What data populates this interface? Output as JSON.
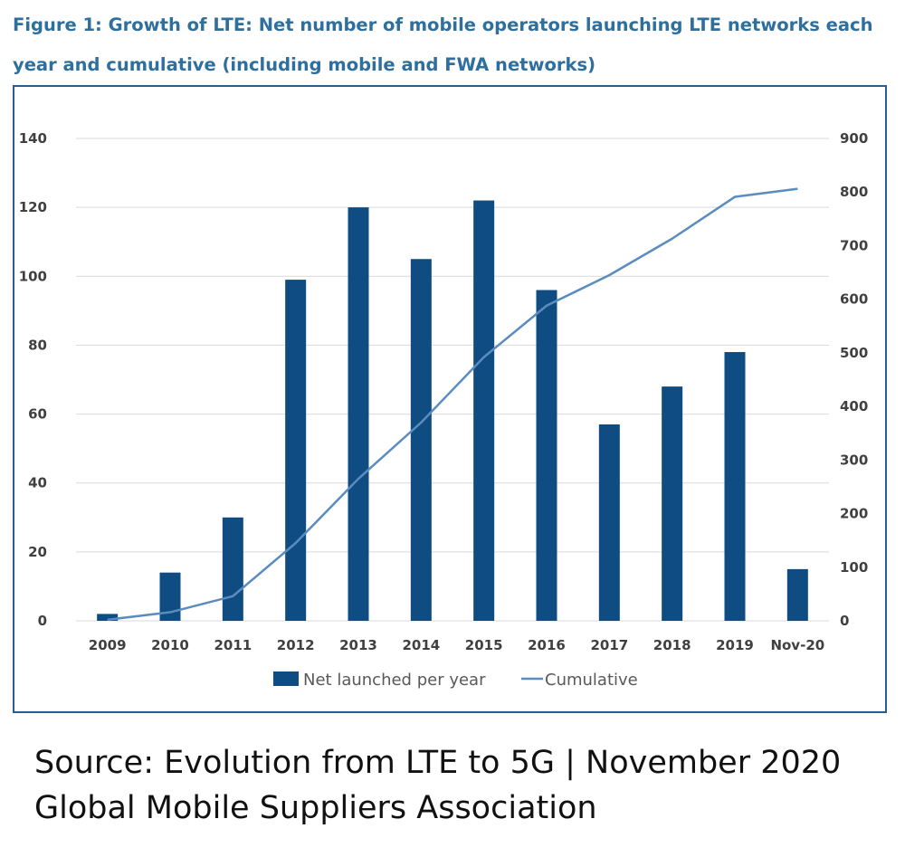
{
  "figure": {
    "title": "Figure 1: Growth of LTE: Net number of mobile operators launching LTE networks each year and cumulative (including mobile and FWA networks)"
  },
  "source": {
    "line1": "Source: Evolution from LTE to 5G | November 2020",
    "line2": "Global Mobile Suppliers Association"
  },
  "colors": {
    "bar": "#0f4c81",
    "line": "#5b8cc0",
    "grid": "#d9d9d9",
    "title": "#2e6f9e",
    "frame": "#2a5d8f"
  },
  "chart_data": {
    "type": "bar",
    "title": "",
    "xlabel": "",
    "ylabel": "",
    "categories": [
      "2009",
      "2010",
      "2011",
      "2012",
      "2013",
      "2014",
      "2015",
      "2016",
      "2017",
      "2018",
      "2019",
      "Nov-20"
    ],
    "series": [
      {
        "name": "Net launched per year",
        "type": "bar",
        "axis": "left",
        "values": [
          2,
          14,
          30,
          99,
          120,
          105,
          122,
          96,
          57,
          68,
          78,
          15
        ]
      },
      {
        "name": "Cumulative",
        "type": "line",
        "axis": "right",
        "values": [
          2,
          16,
          46,
          145,
          265,
          370,
          492,
          588,
          645,
          713,
          791,
          806
        ]
      }
    ],
    "ylim": [
      0,
      140
    ],
    "yticks": [
      0,
      20,
      40,
      60,
      80,
      100,
      120,
      140
    ],
    "y2lim": [
      0,
      900
    ],
    "y2ticks": [
      0,
      100,
      200,
      300,
      400,
      500,
      600,
      700,
      800,
      900
    ],
    "grid": true,
    "legend": "bottom"
  }
}
